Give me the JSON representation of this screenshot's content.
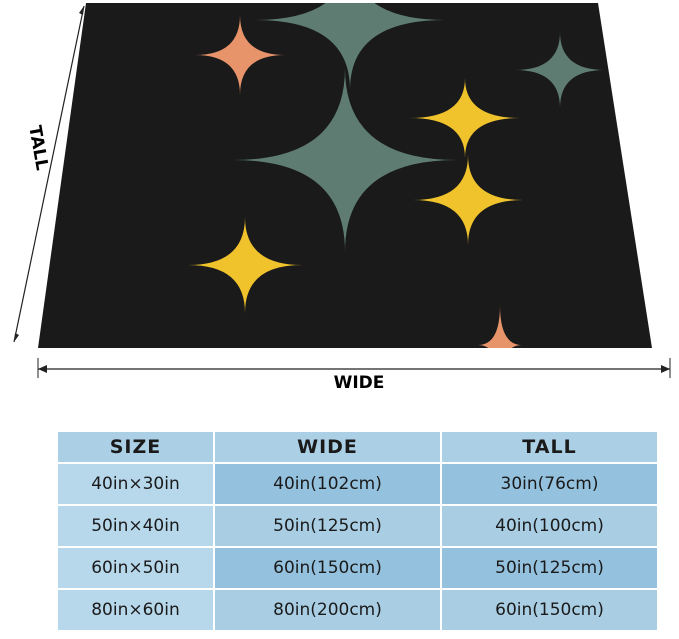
{
  "labels": {
    "tall": "TALL",
    "wide": "WIDE"
  },
  "table": {
    "header": [
      "SIZE",
      "WIDE",
      "TALL"
    ],
    "rows": [
      [
        "40in×30in",
        "40in(102cm)",
        "30in(76cm)"
      ],
      [
        "50in×40in",
        "50in(125cm)",
        "40in(100cm)"
      ],
      [
        "60in×50in",
        "60in(150cm)",
        "50in(125cm)"
      ],
      [
        "80in×60in",
        "80in(200cm)",
        "60in(150cm)"
      ]
    ]
  }
}
